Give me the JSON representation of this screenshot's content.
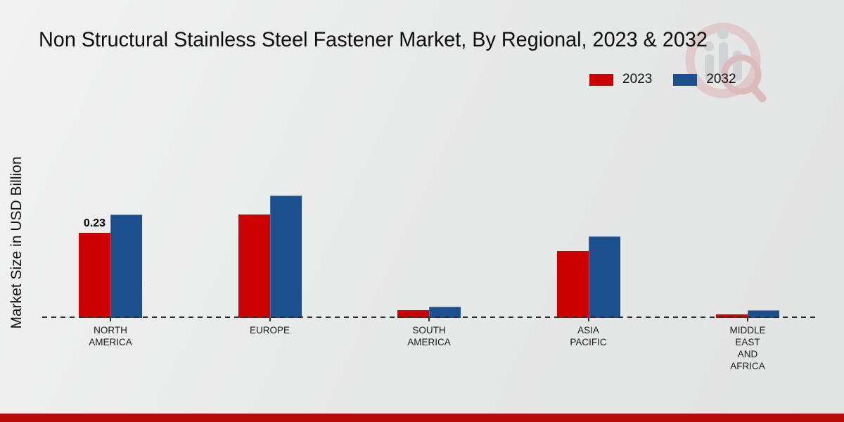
{
  "title": "Non Structural Stainless Steel Fastener Market, By Regional, 2023 & 2032",
  "ylabel": "Market Size in USD Billion",
  "colors": {
    "series_2023": "#cc0000",
    "series_2032": "#1b4f8e",
    "bottom_band": "#b60b0b",
    "background": "#e8e9e9",
    "baseline": "#2e2e2e"
  },
  "chart_data": {
    "type": "bar",
    "categories": [
      "NORTH AMERICA",
      "EUROPE",
      "SOUTH AMERICA",
      "ASIA PACIFIC",
      "MIDDLE EAST AND AFRICA"
    ],
    "category_lines": [
      [
        "NORTH",
        "AMERICA"
      ],
      [
        "EUROPE"
      ],
      [
        "SOUTH",
        "AMERICA"
      ],
      [
        "ASIA",
        "PACIFIC"
      ],
      [
        "MIDDLE",
        "EAST",
        "AND",
        "AFRICA"
      ]
    ],
    "series": [
      {
        "name": "2023",
        "color": "#cc0000",
        "values": [
          0.23,
          0.28,
          0.02,
          0.18,
          0.01
        ]
      },
      {
        "name": "2032",
        "color": "#1b4f8e",
        "values": [
          0.28,
          0.33,
          0.03,
          0.22,
          0.02
        ]
      }
    ],
    "annotations": [
      {
        "series": "2023",
        "category": "NORTH AMERICA",
        "text": "0.23"
      }
    ],
    "title": "Non Structural Stainless Steel Fastener Market, By Regional, 2023 & 2032",
    "xlabel": "",
    "ylabel": "Market Size in USD Billion",
    "ylim": [
      0,
      0.35
    ],
    "grid": false,
    "baseline_style": "dashed",
    "legend_position": "top-right"
  }
}
